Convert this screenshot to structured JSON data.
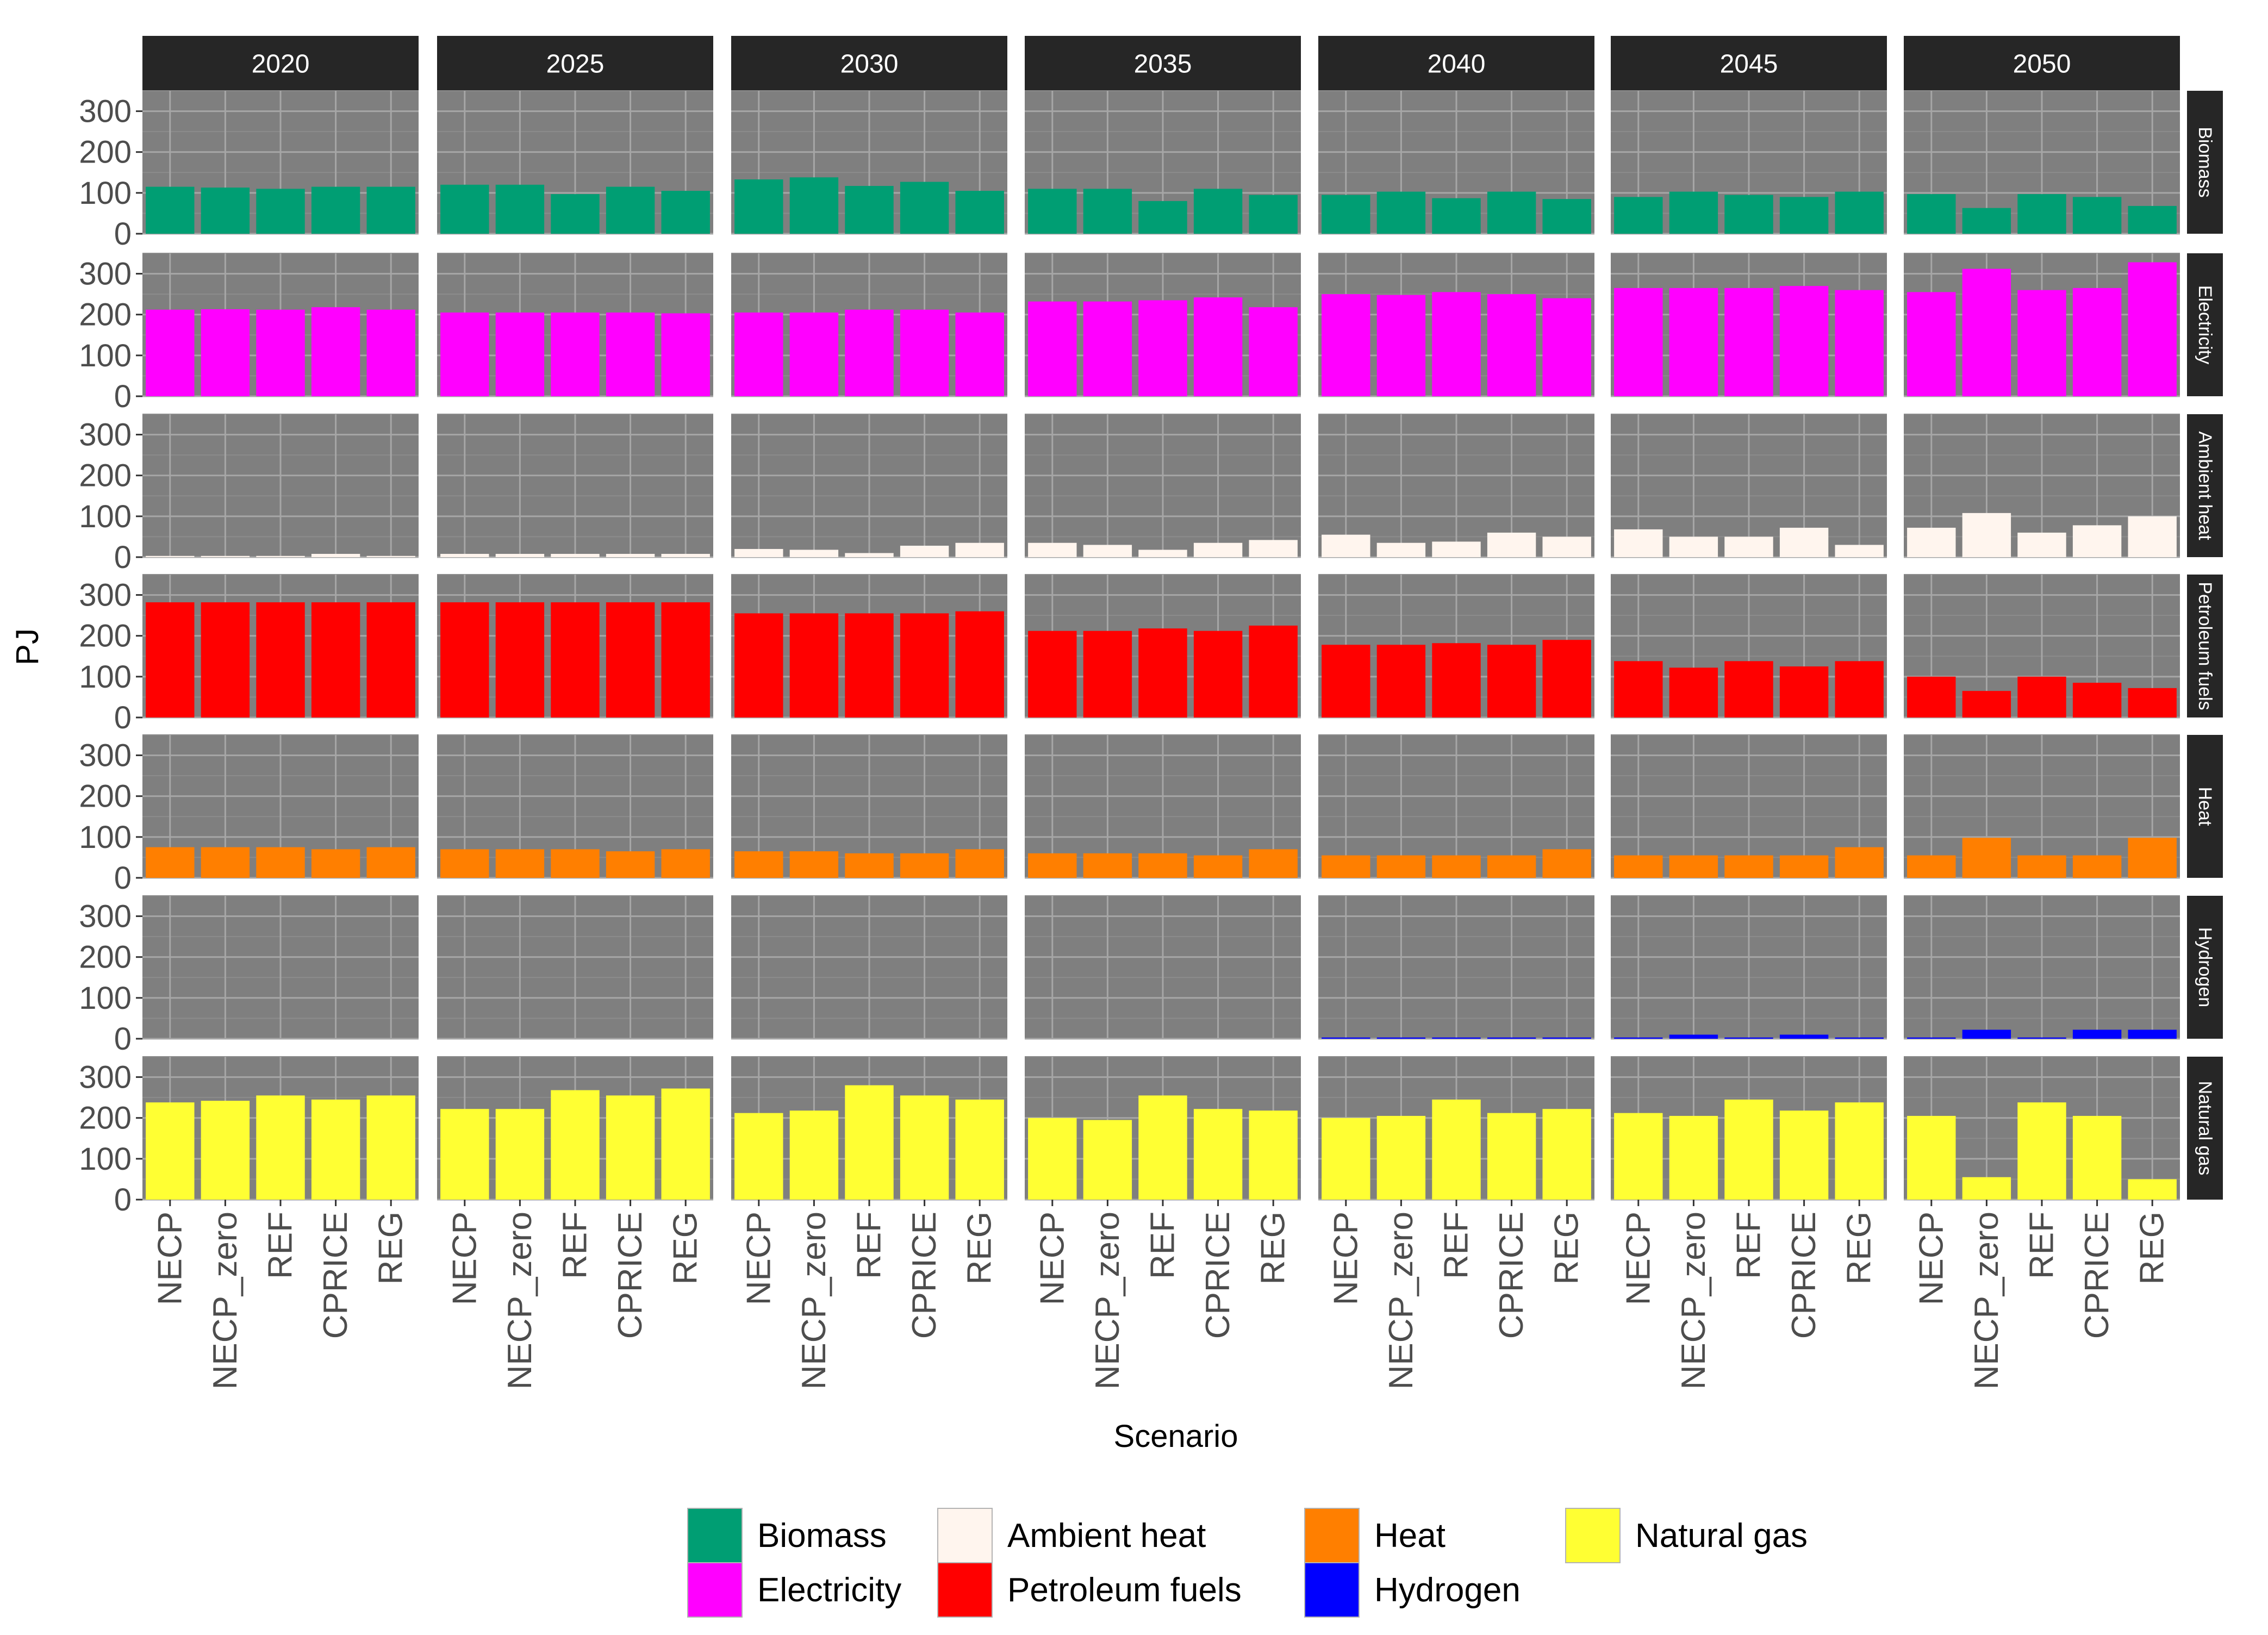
{
  "chart_data": {
    "type": "bar",
    "layout": "facet-grid",
    "ylabel": "PJ",
    "xlabel": "Scenario",
    "ylim": [
      0,
      350
    ],
    "yticks": [
      0,
      100,
      200,
      300
    ],
    "grid": true,
    "legend_position": "bottom",
    "years": [
      "2020",
      "2025",
      "2030",
      "2035",
      "2040",
      "2045",
      "2050"
    ],
    "scenarios": [
      "NECP",
      "NECP_zero",
      "REF",
      "CPRICE",
      "REG"
    ],
    "series": [
      {
        "name": "Biomass",
        "color": "#009E73",
        "values": [
          [
            115,
            113,
            110,
            115,
            115
          ],
          [
            120,
            120,
            97,
            115,
            105
          ],
          [
            133,
            138,
            117,
            127,
            105
          ],
          [
            110,
            110,
            80,
            110,
            95
          ],
          [
            95,
            103,
            87,
            103,
            85
          ],
          [
            90,
            103,
            95,
            90,
            103
          ],
          [
            97,
            63,
            97,
            90,
            68
          ]
        ]
      },
      {
        "name": "Electricity",
        "color": "#FF00FF",
        "values": [
          [
            212,
            213,
            212,
            218,
            212
          ],
          [
            205,
            205,
            205,
            205,
            203
          ],
          [
            205,
            205,
            212,
            212,
            205
          ],
          [
            232,
            232,
            235,
            242,
            218
          ],
          [
            250,
            248,
            255,
            250,
            240
          ],
          [
            265,
            265,
            265,
            270,
            260
          ],
          [
            255,
            312,
            260,
            265,
            328
          ]
        ]
      },
      {
        "name": "Ambient heat",
        "color": "#FFF5EE",
        "values": [
          [
            3,
            3,
            3,
            8,
            3
          ],
          [
            8,
            8,
            8,
            8,
            8
          ],
          [
            20,
            18,
            10,
            28,
            35
          ],
          [
            35,
            30,
            18,
            35,
            42
          ],
          [
            55,
            35,
            38,
            60,
            50
          ],
          [
            68,
            50,
            50,
            72,
            30
          ],
          [
            72,
            108,
            60,
            78,
            100
          ]
        ]
      },
      {
        "name": "Petroleum fuels",
        "color": "#FF0000",
        "values": [
          [
            282,
            282,
            282,
            282,
            282
          ],
          [
            282,
            282,
            282,
            282,
            282
          ],
          [
            255,
            255,
            255,
            255,
            260
          ],
          [
            212,
            212,
            218,
            212,
            225
          ],
          [
            178,
            178,
            182,
            178,
            190
          ],
          [
            138,
            122,
            138,
            125,
            138
          ],
          [
            100,
            65,
            100,
            85,
            72
          ]
        ]
      },
      {
        "name": "Heat",
        "color": "#FF7F00",
        "values": [
          [
            75,
            75,
            75,
            70,
            75
          ],
          [
            70,
            70,
            70,
            65,
            70
          ],
          [
            65,
            65,
            60,
            60,
            70
          ],
          [
            60,
            60,
            60,
            55,
            70
          ],
          [
            55,
            55,
            55,
            55,
            70
          ],
          [
            55,
            55,
            55,
            55,
            75
          ],
          [
            55,
            98,
            55,
            55,
            98
          ]
        ]
      },
      {
        "name": "Hydrogen",
        "color": "#0000FF",
        "values": [
          [
            0,
            0,
            0,
            0,
            0
          ],
          [
            0,
            0,
            0,
            0,
            0
          ],
          [
            0,
            0,
            0,
            0,
            0
          ],
          [
            0,
            0,
            0,
            0,
            0
          ],
          [
            3,
            3,
            3,
            3,
            3
          ],
          [
            3,
            10,
            3,
            10,
            3
          ],
          [
            3,
            22,
            3,
            22,
            22
          ]
        ]
      },
      {
        "name": "Natural gas",
        "color": "#FFFF33",
        "values": [
          [
            238,
            242,
            255,
            245,
            255
          ],
          [
            222,
            222,
            268,
            255,
            272
          ],
          [
            212,
            218,
            280,
            255,
            245
          ],
          [
            200,
            195,
            255,
            222,
            218
          ],
          [
            200,
            205,
            245,
            212,
            222
          ],
          [
            212,
            205,
            245,
            218,
            238
          ],
          [
            205,
            55,
            238,
            205,
            50
          ]
        ]
      }
    ]
  },
  "axes": {
    "ytick_labels": [
      "0",
      "100",
      "200",
      "300"
    ],
    "xlabel": "Scenario",
    "ylabel": "PJ"
  },
  "legend": {
    "entries": [
      {
        "label": "Biomass",
        "color": "#009E73"
      },
      {
        "label": "Electricity",
        "color": "#FF00FF"
      },
      {
        "label": "Ambient heat",
        "color": "#FFF5EE"
      },
      {
        "label": "Petroleum fuels",
        "color": "#FF0000"
      },
      {
        "label": "Heat",
        "color": "#FF7F00"
      },
      {
        "label": "Hydrogen",
        "color": "#0000FF"
      },
      {
        "label": "Natural gas",
        "color": "#FFFF33"
      }
    ]
  },
  "style": {
    "panel_bg": "#7F7F7F",
    "strip_bg": "#262626",
    "strip_text": "#FFFFFF",
    "grid_major": "#A6A6A6",
    "grid_minor": "#8C8C8C",
    "axis_text": "#4D4D4D",
    "title_text": "#000000"
  }
}
